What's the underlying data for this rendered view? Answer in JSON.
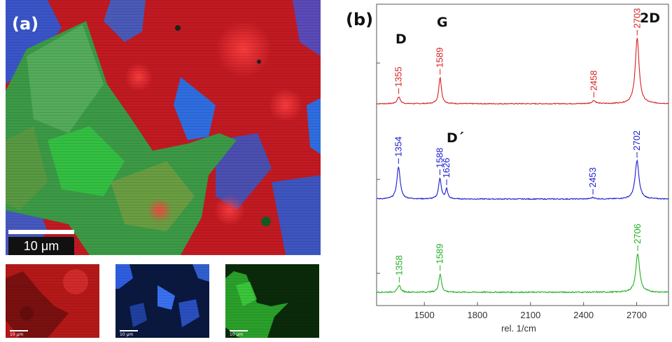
{
  "panel_a": {
    "label": "(a)",
    "scale_main": "10 μm",
    "thumbs": [
      {
        "channel": "red",
        "color": "#d42020",
        "scale": "10 μm"
      },
      {
        "channel": "blue",
        "color": "#2f5ee0",
        "scale": "10 μm"
      },
      {
        "channel": "green",
        "color": "#30c030",
        "scale": "10 μm"
      }
    ]
  },
  "panel_b": {
    "label": "(b)",
    "band_labels": [
      "D",
      "G",
      "2D",
      "D´"
    ]
  },
  "chart_data": {
    "type": "line",
    "xlabel": "rel. 1/cm",
    "ylabel": "",
    "xlim": [
      1230,
      2880
    ],
    "xticks": [
      1500,
      1800,
      2100,
      2400,
      2700
    ],
    "xtick_labels": [
      "1500",
      "1800",
      "2100",
      "2400",
      "2700"
    ],
    "grid": false,
    "series": [
      {
        "color": "#d62020",
        "baseline": 0.0,
        "noise": 0.006,
        "peaks": [
          {
            "x": 1355,
            "h": 0.09,
            "w": 10
          },
          {
            "x": 1589,
            "h": 0.34,
            "w": 9
          },
          {
            "x": 2458,
            "h": 0.04,
            "w": 12
          },
          {
            "x": 2703,
            "h": 0.85,
            "w": 13
          }
        ],
        "labels": [
          {
            "x": 1355,
            "text": "1355"
          },
          {
            "x": 1589,
            "text": "1589"
          },
          {
            "x": 2458,
            "text": "2458"
          },
          {
            "x": 2703,
            "text": "2703"
          }
        ]
      },
      {
        "color": "#1a1ad0",
        "baseline": 0.0,
        "noise": 0.006,
        "peaks": [
          {
            "x": 1354,
            "h": 0.42,
            "w": 11
          },
          {
            "x": 1588,
            "h": 0.27,
            "w": 9
          },
          {
            "x": 1626,
            "h": 0.13,
            "w": 7
          },
          {
            "x": 2453,
            "h": 0.02,
            "w": 12
          },
          {
            "x": 2702,
            "h": 0.5,
            "w": 13
          }
        ],
        "labels": [
          {
            "x": 1354,
            "text": "1354"
          },
          {
            "x": 1588,
            "text": "1588"
          },
          {
            "x": 1626,
            "text": "1626"
          },
          {
            "x": 2453,
            "text": "2453"
          },
          {
            "x": 2702,
            "text": "2702"
          }
        ]
      },
      {
        "color": "#22b022",
        "baseline": 0.0,
        "noise": 0.008,
        "peaks": [
          {
            "x": 1358,
            "h": 0.09,
            "w": 10
          },
          {
            "x": 1589,
            "h": 0.24,
            "w": 9
          },
          {
            "x": 2706,
            "h": 0.5,
            "w": 13
          }
        ],
        "labels": [
          {
            "x": 1358,
            "text": "1358"
          },
          {
            "x": 1589,
            "text": "1589"
          },
          {
            "x": 2706,
            "text": "2706"
          }
        ]
      }
    ]
  }
}
